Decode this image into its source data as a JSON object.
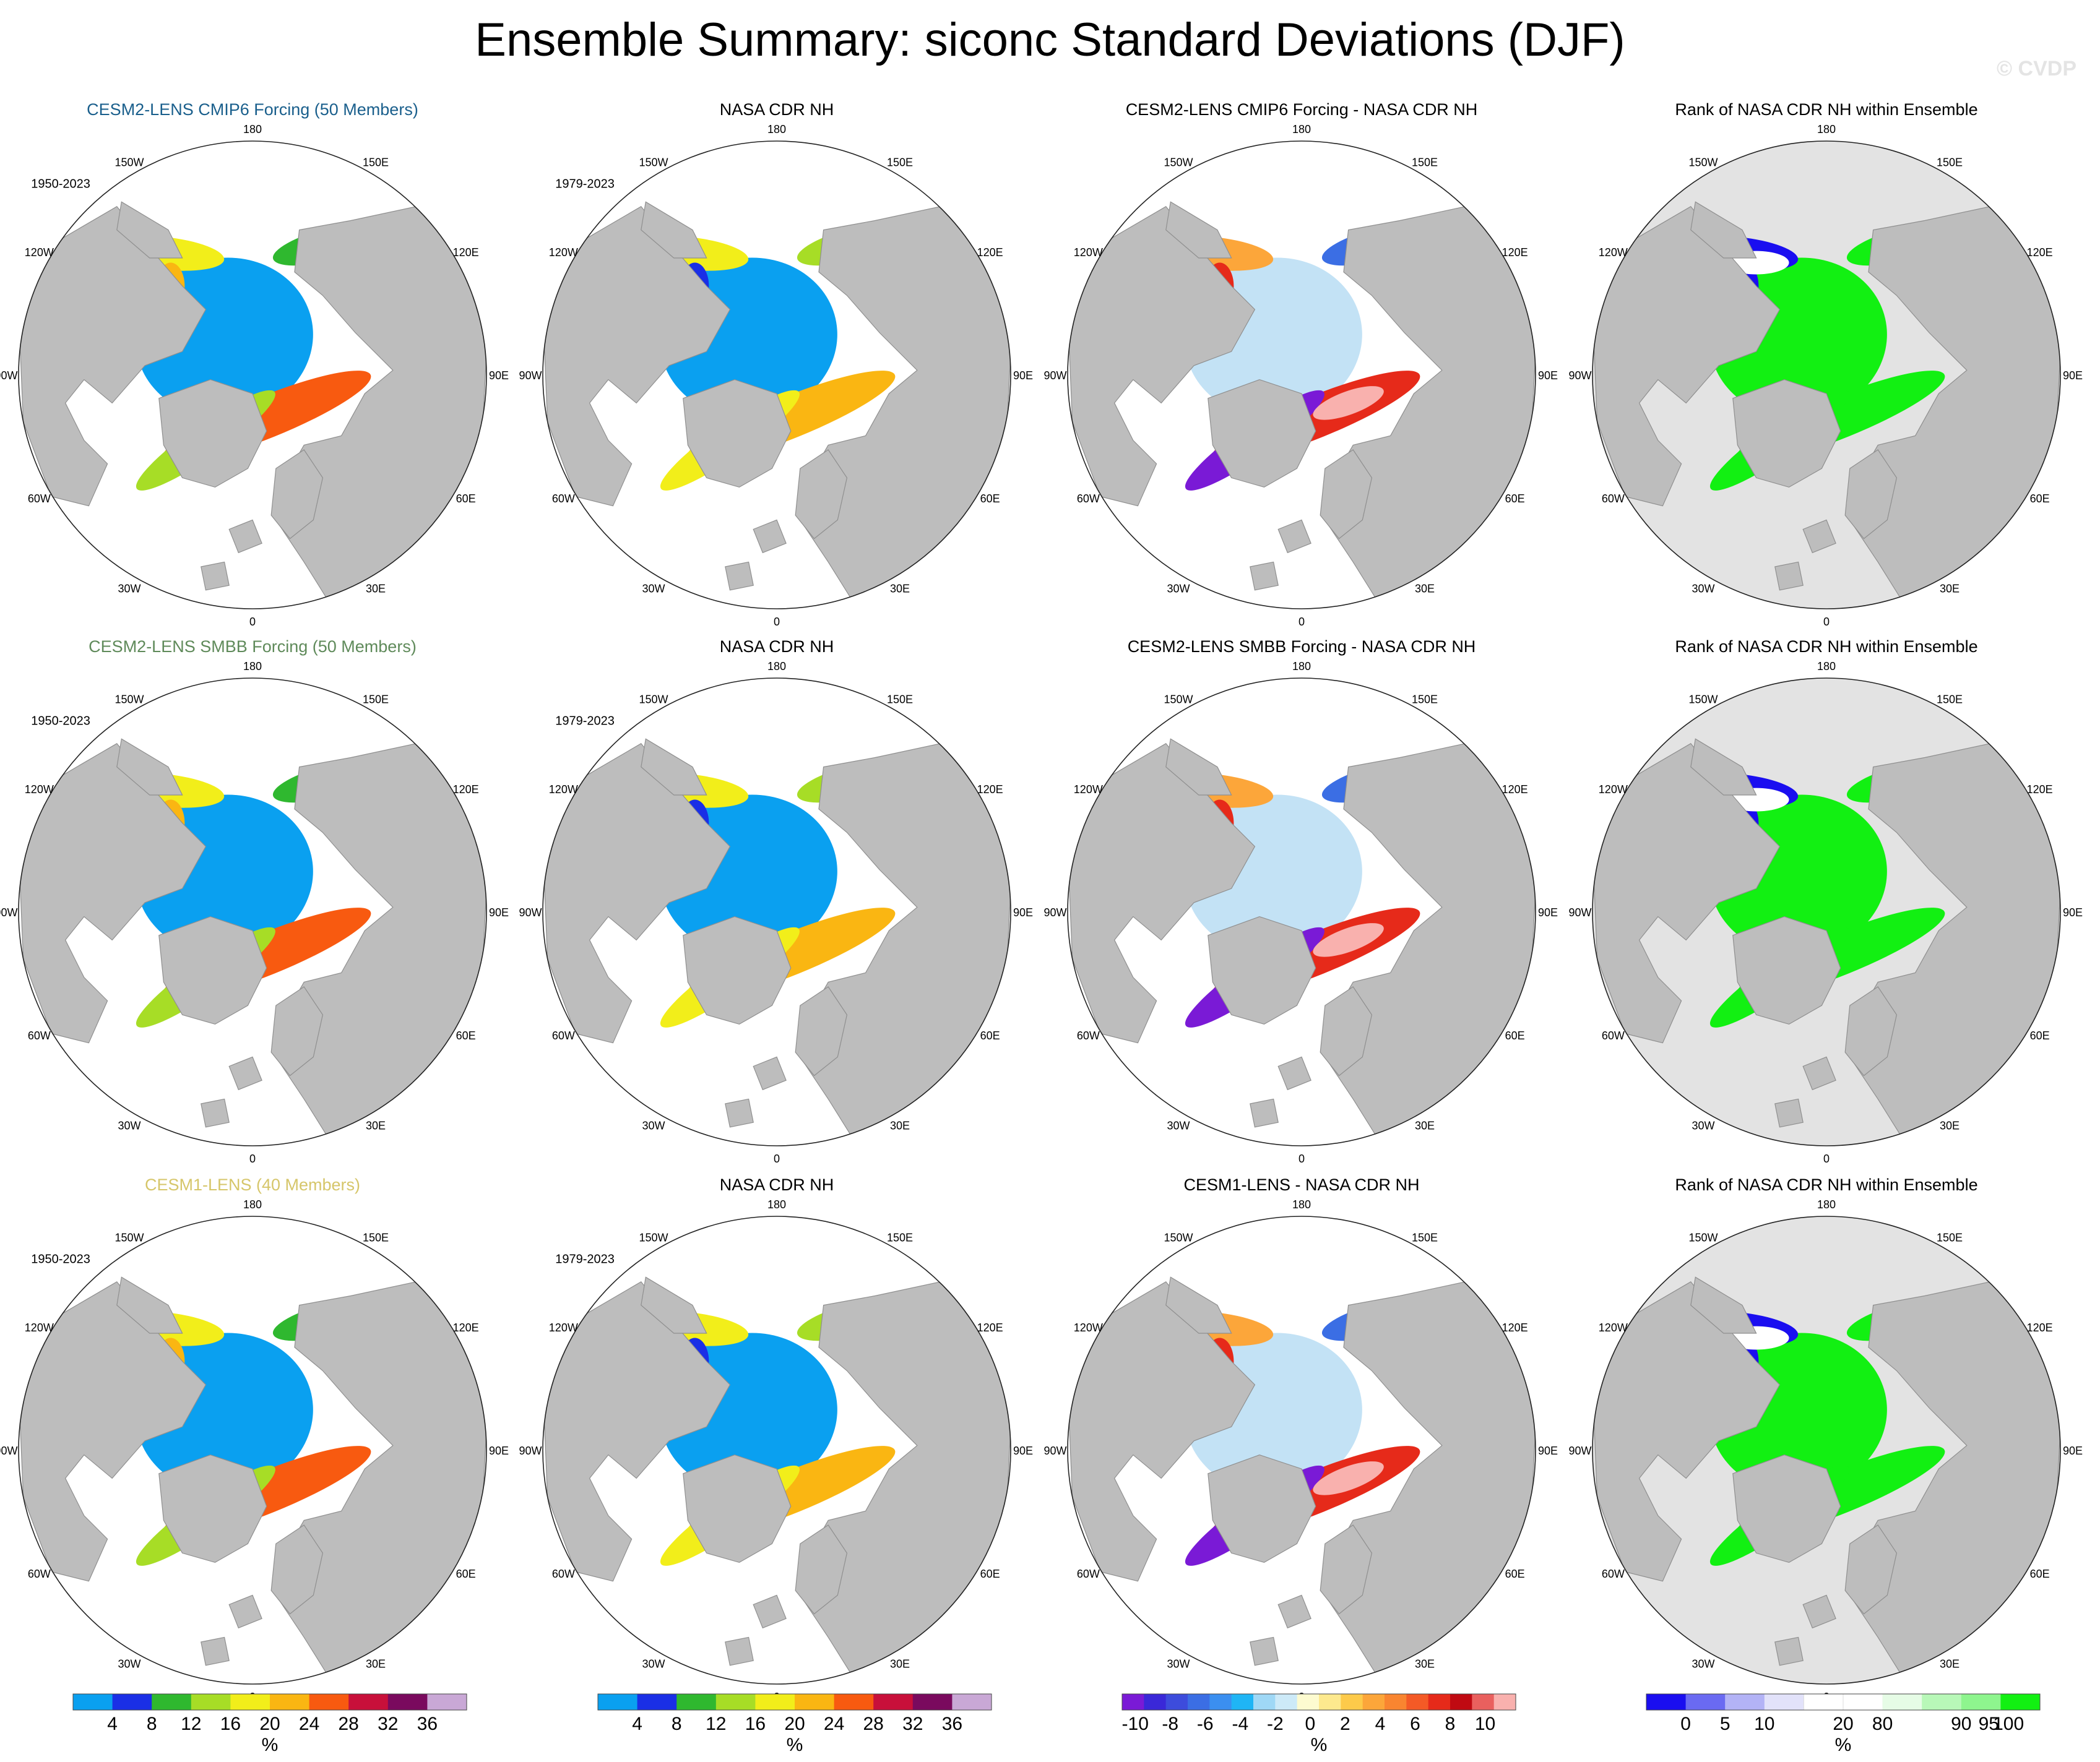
{
  "title": "Ensemble Summary: siconc Standard Deviations (DJF)",
  "watermark": "© CVDP",
  "colors": {
    "land": "#bdbdbd",
    "ocean": "#ffffff",
    "rank_background": "#e3e3e3",
    "row_title_cmip6": "#1a5f8c",
    "row_title_smbb": "#5f8a5a",
    "row_title_lens1": "#d6c66a"
  },
  "longitude_labels": [
    "180",
    "150E",
    "120E",
    "90E",
    "60E",
    "30E",
    "0",
    "30W",
    "60W",
    "90W",
    "120W",
    "150W"
  ],
  "rows": [
    {
      "panels": [
        {
          "title": "CESM2-LENS CMIP6 Forcing (50 Members)",
          "period": "1950-2023",
          "kind": "sd",
          "title_color": "row_title_cmip6"
        },
        {
          "title": "NASA CDR NH",
          "period": "1979-2023",
          "kind": "sd_obs"
        },
        {
          "title": "CESM2-LENS CMIP6 Forcing - NASA CDR NH",
          "period": "",
          "kind": "diff"
        },
        {
          "title": "Rank of NASA CDR NH within Ensemble",
          "period": "",
          "kind": "rank"
        }
      ]
    },
    {
      "panels": [
        {
          "title": "CESM2-LENS SMBB Forcing (50 Members)",
          "period": "1950-2023",
          "kind": "sd",
          "title_color": "row_title_smbb"
        },
        {
          "title": "NASA CDR NH",
          "period": "1979-2023",
          "kind": "sd_obs"
        },
        {
          "title": "CESM2-LENS SMBB Forcing - NASA CDR NH",
          "period": "",
          "kind": "diff"
        },
        {
          "title": "Rank of NASA CDR NH within Ensemble",
          "period": "",
          "kind": "rank"
        }
      ]
    },
    {
      "panels": [
        {
          "title": "CESM1-LENS (40 Members)",
          "period": "1950-2023",
          "kind": "sd",
          "title_color": "row_title_lens1"
        },
        {
          "title": "NASA CDR NH",
          "period": "1979-2023",
          "kind": "sd_obs"
        },
        {
          "title": "CESM1-LENS - NASA CDR NH",
          "period": "",
          "kind": "diff"
        },
        {
          "title": "Rank of NASA CDR NH within Ensemble",
          "period": "",
          "kind": "rank"
        }
      ]
    }
  ],
  "colorbars": [
    {
      "unit": "%",
      "labels": [
        "4",
        "8",
        "12",
        "16",
        "20",
        "24",
        "28",
        "32",
        "36"
      ],
      "colors": [
        "#0aa0f0",
        "#1a2fe6",
        "#2fb82f",
        "#a7dd26",
        "#f2ee1a",
        "#fab612",
        "#f85a10",
        "#c8103a",
        "#7a0a5e",
        "#c9a8d6"
      ]
    },
    {
      "unit": "%",
      "labels": [
        "4",
        "8",
        "12",
        "16",
        "20",
        "24",
        "28",
        "32",
        "36"
      ],
      "colors": [
        "#0aa0f0",
        "#1a2fe6",
        "#2fb82f",
        "#a7dd26",
        "#f2ee1a",
        "#fab612",
        "#f85a10",
        "#c8103a",
        "#7a0a5e",
        "#c9a8d6"
      ]
    },
    {
      "unit": "%",
      "labels": [
        "-10",
        "-8",
        "-6",
        "-4",
        "-2",
        "0",
        "2",
        "4",
        "6",
        "8",
        "10"
      ],
      "colors": [
        "#7a1ad6",
        "#3a28d8",
        "#3d4cdc",
        "#3b6ee4",
        "#3b8ff0",
        "#1fb5f5",
        "#9fd8f6",
        "#cdeaf8",
        "#fdfbd0",
        "#fde98e",
        "#fdca4a",
        "#fca63a",
        "#f98530",
        "#f45a26",
        "#e62a1a",
        "#c00a12",
        "#e9605e",
        "#f9b1ae"
      ]
    },
    {
      "unit": "%",
      "labels": [
        "0",
        "5",
        "10",
        "20",
        "80",
        "90",
        "95",
        "100"
      ],
      "colors": [
        "#1a0ef0",
        "#6a6af2",
        "#b3b3f6",
        "#e2e2fa",
        "#ffffff",
        "#ffffff",
        "#e6fce6",
        "#b8f8b8",
        "#8ef58e",
        "#12f012"
      ]
    }
  ]
}
